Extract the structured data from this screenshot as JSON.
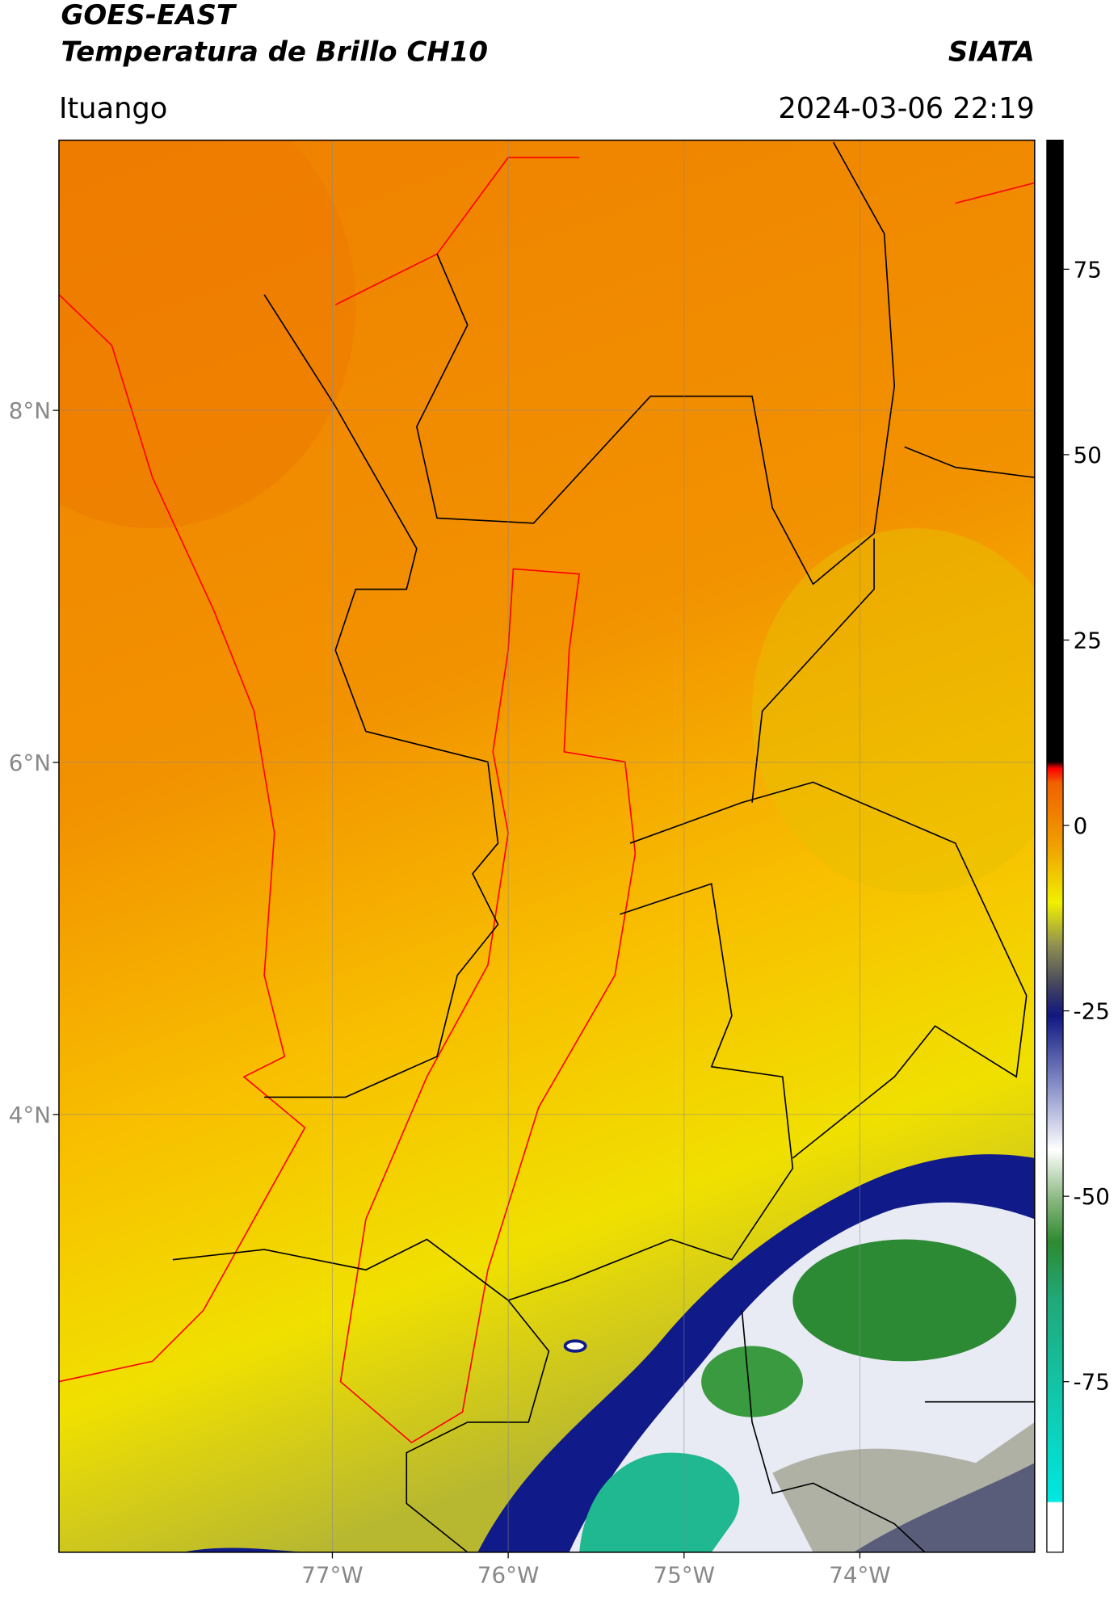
{
  "header": {
    "title": "GOES-EAST",
    "subtitle": "Temperatura de Brillo CH10",
    "source": "SIATA",
    "location": "Ituango",
    "timestamp": "2024-03-06 22:19"
  },
  "map": {
    "xlim": [
      -78.555,
      -73.006
    ],
    "ylim": [
      1.513,
      9.535
    ],
    "xticks": [
      {
        "value": -77,
        "label": "77°W"
      },
      {
        "value": -76,
        "label": "76°W"
      },
      {
        "value": -75,
        "label": "75°W"
      },
      {
        "value": -74,
        "label": "74°W"
      }
    ],
    "yticks": [
      {
        "value": 4,
        "label": "4°N"
      },
      {
        "value": 6,
        "label": "6°N"
      },
      {
        "value": 8,
        "label": "8°N"
      }
    ],
    "grid": true
  },
  "colorbar": {
    "lim": [
      -98,
      92.4
    ],
    "ticks": [
      -75,
      -50,
      -25,
      0,
      25,
      50,
      75
    ]
  }
}
